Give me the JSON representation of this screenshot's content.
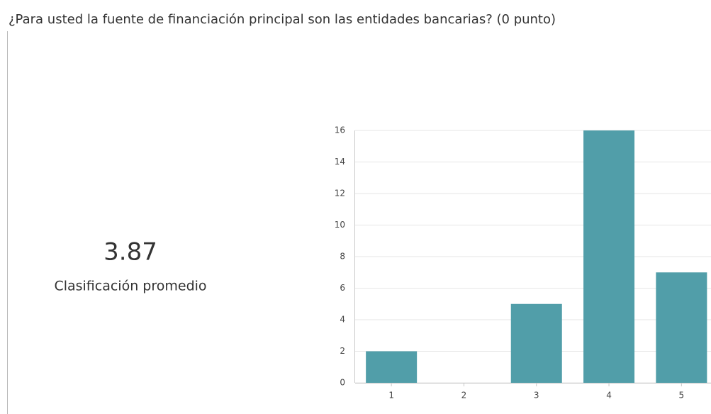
{
  "chart_data": {
    "type": "bar",
    "title": "¿Para usted la fuente de financiación principal son las entidades bancarias? (0 punto)",
    "average": 3.87,
    "average_label": "Clasificación promedio",
    "categories": [
      "1",
      "2",
      "3",
      "4",
      "5"
    ],
    "values": [
      2,
      0,
      5,
      16,
      7
    ],
    "color": "#519ea9",
    "ylim": [
      0,
      16
    ],
    "yticks": [
      0,
      2,
      4,
      6,
      8,
      10,
      12,
      14,
      16
    ],
    "grid": true
  }
}
